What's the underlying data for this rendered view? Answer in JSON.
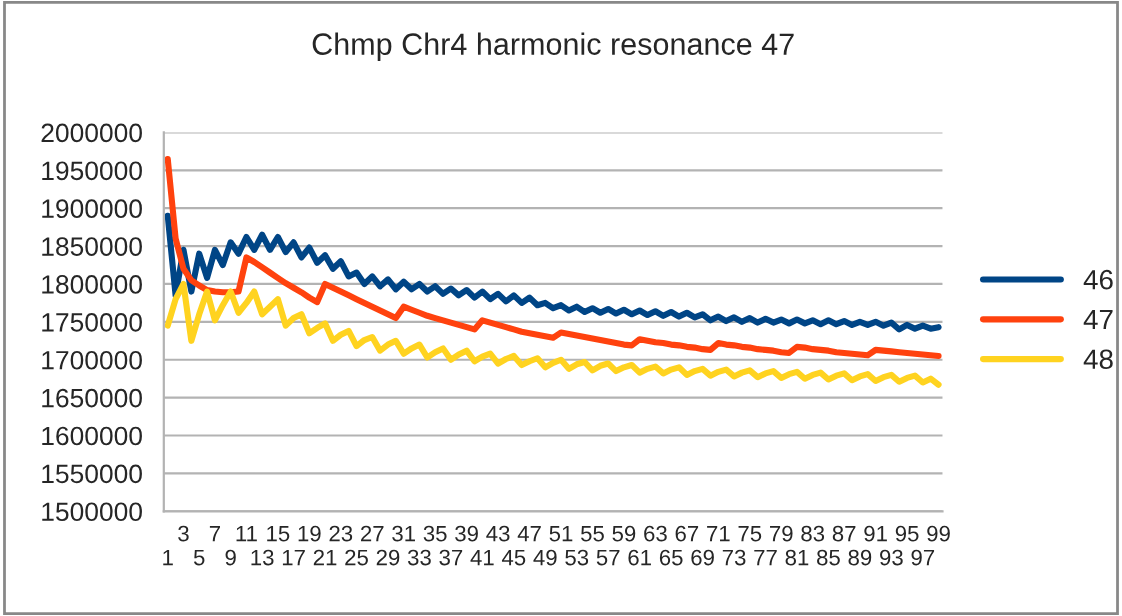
{
  "chart_data": {
    "type": "line",
    "title": "Chmp Chr4 harmonic resonance 47",
    "categories": [
      "1",
      null,
      "3",
      null,
      "5",
      null,
      "7",
      null,
      "9",
      null,
      "11",
      null,
      "13",
      null,
      "15",
      null,
      "17",
      null,
      "19",
      null,
      "21",
      null,
      "23",
      null,
      "25",
      null,
      "27",
      null,
      "29",
      null,
      "31",
      null,
      "33",
      null,
      "35",
      null,
      "37",
      null,
      "39",
      null,
      "41",
      null,
      "43",
      null,
      "45",
      null,
      "47",
      null,
      "49",
      null,
      "51",
      null,
      "53",
      null,
      "55",
      null,
      "57",
      null,
      "59",
      null,
      "61",
      null,
      "63",
      null,
      "65",
      null,
      "67",
      null,
      "69",
      null,
      "71",
      null,
      "73",
      null,
      "75",
      null,
      "77",
      null,
      "79",
      null,
      "81",
      null,
      "83",
      null,
      "85",
      null,
      "87",
      null,
      "89",
      null,
      "91",
      null,
      "93",
      null,
      "95",
      null,
      "97",
      null,
      "99"
    ],
    "series": [
      {
        "name": "46",
        "color": "#004586",
        "values": [
          1890000,
          1785000,
          1845000,
          1790000,
          1840000,
          1808000,
          1845000,
          1825000,
          1855000,
          1840000,
          1862000,
          1845000,
          1865000,
          1845000,
          1862000,
          1842000,
          1855000,
          1835000,
          1848000,
          1828000,
          1838000,
          1820000,
          1830000,
          1810000,
          1815000,
          1800000,
          1810000,
          1797000,
          1806000,
          1793000,
          1803000,
          1793000,
          1800000,
          1790000,
          1797000,
          1787000,
          1794000,
          1785000,
          1792000,
          1782000,
          1790000,
          1780000,
          1787000,
          1777000,
          1785000,
          1775000,
          1782000,
          1772000,
          1775000,
          1768000,
          1772000,
          1765000,
          1770000,
          1763000,
          1768000,
          1762000,
          1767000,
          1761000,
          1766000,
          1760000,
          1765000,
          1759000,
          1764000,
          1758000,
          1763000,
          1757000,
          1762000,
          1756000,
          1760000,
          1752000,
          1757000,
          1751000,
          1756000,
          1750000,
          1755000,
          1749000,
          1754000,
          1749000,
          1753000,
          1748000,
          1753000,
          1748000,
          1752000,
          1747000,
          1752000,
          1747000,
          1751000,
          1746000,
          1750000,
          1746000,
          1750000,
          1745000,
          1749000,
          1740000,
          1746000,
          1741000,
          1745000,
          1741000,
          1743000
        ]
      },
      {
        "name": "47",
        "color": "#ff420e",
        "values": [
          1965000,
          1860000,
          1820000,
          1805000,
          1798000,
          1792000,
          1790000,
          1789000,
          1789000,
          1790000,
          1835000,
          1829000,
          1822000,
          1815000,
          1808000,
          1801000,
          1795000,
          1789000,
          1782000,
          1776000,
          1800000,
          1795000,
          1790000,
          1785000,
          1780000,
          1775000,
          1770000,
          1765000,
          1760000,
          1755000,
          1770000,
          1766000,
          1762000,
          1758000,
          1755000,
          1752000,
          1749000,
          1746000,
          1743000,
          1740000,
          1752000,
          1749000,
          1746000,
          1743000,
          1740000,
          1737000,
          1735000,
          1733000,
          1731000,
          1729000,
          1736000,
          1734000,
          1732000,
          1730000,
          1728000,
          1726000,
          1724000,
          1722000,
          1720000,
          1719000,
          1727000,
          1725000,
          1723000,
          1722000,
          1720000,
          1719000,
          1717000,
          1716000,
          1714000,
          1713000,
          1722000,
          1720000,
          1719000,
          1717000,
          1716000,
          1714000,
          1713000,
          1712000,
          1710000,
          1709000,
          1717000,
          1716000,
          1714000,
          1713000,
          1712000,
          1710000,
          1709000,
          1708000,
          1707000,
          1706000,
          1713000,
          1712000,
          1711000,
          1710000,
          1709000,
          1708000,
          1707000,
          1706000,
          1705000
        ]
      },
      {
        "name": "48",
        "color": "#ffd320",
        "values": [
          1745000,
          1780000,
          1800000,
          1725000,
          1760000,
          1790000,
          1752000,
          1772000,
          1790000,
          1762000,
          1775000,
          1790000,
          1760000,
          1770000,
          1780000,
          1745000,
          1755000,
          1760000,
          1735000,
          1742000,
          1748000,
          1725000,
          1733000,
          1738000,
          1718000,
          1726000,
          1730000,
          1712000,
          1720000,
          1725000,
          1708000,
          1715000,
          1720000,
          1703000,
          1710000,
          1715000,
          1700000,
          1707000,
          1712000,
          1698000,
          1704000,
          1708000,
          1695000,
          1701000,
          1705000,
          1693000,
          1698000,
          1702000,
          1690000,
          1696000,
          1700000,
          1688000,
          1694000,
          1697000,
          1686000,
          1692000,
          1695000,
          1685000,
          1690000,
          1693000,
          1683000,
          1688000,
          1691000,
          1682000,
          1687000,
          1690000,
          1680000,
          1685000,
          1688000,
          1679000,
          1684000,
          1687000,
          1678000,
          1683000,
          1686000,
          1677000,
          1682000,
          1685000,
          1676000,
          1681000,
          1684000,
          1675000,
          1680000,
          1683000,
          1674000,
          1679000,
          1682000,
          1673000,
          1678000,
          1681000,
          1672000,
          1677000,
          1680000,
          1671000,
          1676000,
          1679000,
          1670000,
          1675000,
          1667000
        ]
      }
    ],
    "ylim": [
      1500000,
      2000000
    ],
    "yticks": [
      1500000,
      1550000,
      1600000,
      1650000,
      1700000,
      1750000,
      1800000,
      1850000,
      1900000,
      1950000,
      2000000
    ],
    "grid": "y",
    "legend": "right",
    "marker": "none",
    "line_style": "solid"
  }
}
